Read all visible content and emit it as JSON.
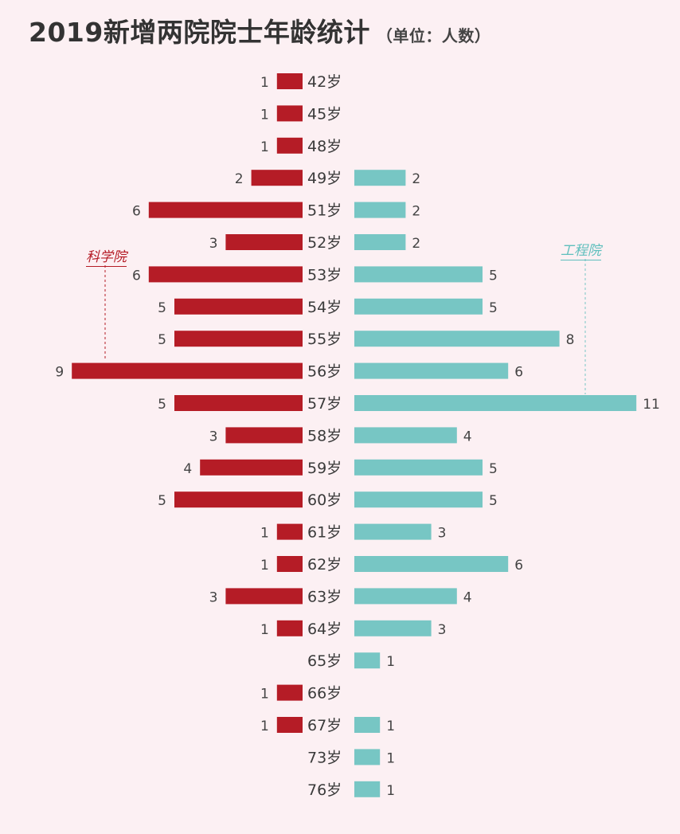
{
  "title": "2019新增两院院士年龄统计",
  "subtitle": "（单位：人数）",
  "chart_data": {
    "type": "bar",
    "orientation": "horizontal-diverging",
    "title": "2019新增两院院士年龄统计",
    "subtitle": "（单位：人数）",
    "categories": [
      "42岁",
      "45岁",
      "48岁",
      "49岁",
      "51岁",
      "52岁",
      "53岁",
      "54岁",
      "55岁",
      "56岁",
      "57岁",
      "58岁",
      "59岁",
      "60岁",
      "61岁",
      "62岁",
      "63岁",
      "64岁",
      "65岁",
      "66岁",
      "67岁",
      "73岁",
      "76岁"
    ],
    "series": [
      {
        "name": "科学院",
        "color": "#b51c26",
        "values": [
          1,
          1,
          1,
          2,
          6,
          3,
          6,
          5,
          5,
          9,
          5,
          3,
          4,
          5,
          1,
          1,
          3,
          1,
          null,
          1,
          1,
          null,
          null
        ]
      },
      {
        "name": "工程院",
        "color": "#77c6c4",
        "values": [
          null,
          null,
          null,
          2,
          2,
          2,
          5,
          5,
          8,
          6,
          11,
          4,
          5,
          5,
          3,
          6,
          4,
          3,
          1,
          null,
          1,
          1,
          1
        ]
      }
    ],
    "grid": false
  }
}
